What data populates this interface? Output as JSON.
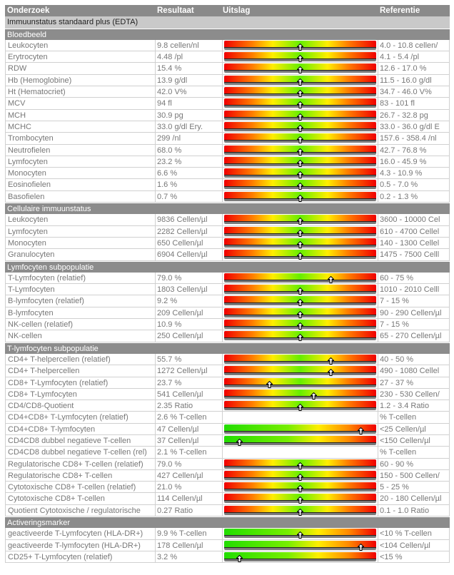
{
  "header": {
    "onderzoek": "Onderzoek",
    "resultaat": "Resultaat",
    "uitslag": "Uitslag",
    "referentie": "Referentie"
  },
  "group_title": "Immuunstatus standaard plus (EDTA)",
  "colors": {
    "header": "#8a8a8a",
    "group": "#c9c9c9",
    "low_high": "#f00000",
    "normal": "#66ee00",
    "intermediate": "#ffee00"
  },
  "sections": [
    {
      "title": "Bloedbeeld",
      "rows": [
        {
          "name": "Leukocyten",
          "result": "9.8 cellen/nl",
          "ref": "4.0 - 10.8 cellen/",
          "bar": "range",
          "pos": 0.5
        },
        {
          "name": "Erytrocyten",
          "result": "4.48 /pl",
          "ref": "4.1 - 5.4 /pl",
          "bar": "range",
          "pos": 0.5
        },
        {
          "name": "RDW",
          "result": "15.4 %",
          "ref": "12.6 - 17.0 %",
          "bar": "range",
          "pos": 0.5
        },
        {
          "name": "Hb (Hemoglobine)",
          "result": "13.9 g/dl",
          "ref": "11.5 - 16.0 g/dl",
          "bar": "range",
          "pos": 0.5
        },
        {
          "name": "Ht (Hematocriet)",
          "result": "42.0 V%",
          "ref": "34.7 - 46.0 V%",
          "bar": "range",
          "pos": 0.5
        },
        {
          "name": "MCV",
          "result": "94 fl",
          "ref": "83 - 101 fl",
          "bar": "range",
          "pos": 0.5
        },
        {
          "name": "MCH",
          "result": "30.9 pg",
          "ref": "26.7 - 32.8 pg",
          "bar": "range",
          "pos": 0.5
        },
        {
          "name": "MCHC",
          "result": "33.0 g/dl Ery.",
          "ref": "33.0 - 36.0 g/dl E",
          "bar": "range",
          "pos": 0.5
        },
        {
          "name": "Trombocyten",
          "result": "299 /nl",
          "ref": "157.6 - 358.4 /nl",
          "bar": "range",
          "pos": 0.5
        },
        {
          "name": "Neutrofielen",
          "result": "68.0 %",
          "ref": "42.7 - 76.8 %",
          "bar": "range",
          "pos": 0.5
        },
        {
          "name": "Lymfocyten",
          "result": "23.2 %",
          "ref": "16.0 - 45.9 %",
          "bar": "range",
          "pos": 0.5
        },
        {
          "name": "Monocyten",
          "result": "6.6 %",
          "ref": "4.3 - 10.9 %",
          "bar": "range",
          "pos": 0.5
        },
        {
          "name": "Eosinofielen",
          "result": "1.6 %",
          "ref": "0.5 - 7.0 %",
          "bar": "range",
          "pos": 0.5
        },
        {
          "name": "Basofielen",
          "result": "0.7 %",
          "ref": "0.2 - 1.3 %",
          "bar": "range",
          "pos": 0.5
        }
      ]
    },
    {
      "title": "Cellulaire immuunstatus",
      "rows": [
        {
          "name": "Leukocyten",
          "result": "9836 Cellen/µl",
          "ref": "3600 - 10000 Cel",
          "bar": "range",
          "pos": 0.5
        },
        {
          "name": "Lymfocyten",
          "result": "2282 Cellen/µl",
          "ref": "610 - 4700 Cellel",
          "bar": "range",
          "pos": 0.5
        },
        {
          "name": "Monocyten",
          "result": "650 Cellen/µl",
          "ref": "140 - 1300 Cellel",
          "bar": "range",
          "pos": 0.5
        },
        {
          "name": "Granulocyten",
          "result": "6904 Cellen/µl",
          "ref": "1475 - 7500 Celll",
          "bar": "range",
          "pos": 0.5
        }
      ]
    },
    {
      "title": "Lymfocyten subpopulatie",
      "rows": [
        {
          "name": "T-Lymfocyten (relatief)",
          "result": "79.0 %",
          "ref": "60 - 75 %",
          "bar": "range",
          "pos": 0.7
        },
        {
          "name": "T-Lymfocyten",
          "result": "1803 Cellen/µl",
          "ref": "1010 - 2010 Celll",
          "bar": "range",
          "pos": 0.5
        },
        {
          "name": "B-lymfocyten (relatief)",
          "result": "9.2 %",
          "ref": "7 - 15 %",
          "bar": "range",
          "pos": 0.5
        },
        {
          "name": "B-lymfocyten",
          "result": "209 Cellen/µl",
          "ref": "90 - 290 Cellen/µl",
          "bar": "range",
          "pos": 0.5
        },
        {
          "name": "NK-cellen (relatief)",
          "result": "10.9 %",
          "ref": "7 - 15 %",
          "bar": "range",
          "pos": 0.5
        },
        {
          "name": "NK-cellen",
          "result": "250 Cellen/µl",
          "ref": "65 - 270 Cellen/µl",
          "bar": "range",
          "pos": 0.5
        }
      ]
    },
    {
      "title": "T-lymfocyten subpopulatie",
      "rows": [
        {
          "name": "CD4+ T-helpercellen (relatief)",
          "result": "55.7 %",
          "ref": "40 - 50 %",
          "bar": "range",
          "pos": 0.7
        },
        {
          "name": "CD4+ T-helpercellen",
          "result": "1272 Cellen/µl",
          "ref": "490 - 1080 Cellel",
          "bar": "range",
          "pos": 0.7
        },
        {
          "name": "CD8+ T-Lymfocyten (relatief)",
          "result": "23.7 %",
          "ref": "27 - 37 %",
          "bar": "range",
          "pos": 0.3
        },
        {
          "name": "CD8+ T-Lymfocyten",
          "result": "541 Cellen/µl",
          "ref": "230 - 530 Cellen/",
          "bar": "range",
          "pos": 0.59
        },
        {
          "name": "CD4/CD8-Quotient",
          "result": "2.35 Ratio",
          "ref": "1.2 - 3.4 Ratio",
          "bar": "range",
          "pos": 0.5
        },
        {
          "name": "CD4+CD8+ T-Lymfocyten (relatief)",
          "result": "2.6 % T-cellen",
          "ref": " % T-cellen",
          "bar": "none"
        },
        {
          "name": "CD4+CD8+ T-lymfocyten",
          "result": "47 Cellen/µl",
          "ref": "<25 Cellen/µl",
          "bar": "upper",
          "pos": 0.9
        },
        {
          "name": "CD4CD8 dubbel negatieve T-cellen",
          "result": "37 Cellen/µl",
          "ref": "<150 Cellen/µl",
          "bar": "upper",
          "pos": 0.1
        },
        {
          "name": "CD4CD8 dubbel negatieve T-cellen (rel)",
          "result": "2.1 % T-cellen",
          "ref": " % T-cellen",
          "bar": "none"
        },
        {
          "name": "Regulatorische CD8+ T-cellen (relatief)",
          "result": "79.0 %",
          "ref": "60 - 90 %",
          "bar": "range",
          "pos": 0.5
        },
        {
          "name": "Regulatorische CD8+ T-cellen",
          "result": "427 Cellen/µl",
          "ref": "150 - 500 Cellen/",
          "bar": "range",
          "pos": 0.5
        },
        {
          "name": "Cytotoxische CD8+ T-cellen (relatief)",
          "result": "21.0 %",
          "ref": "5 - 25 %",
          "bar": "range",
          "pos": 0.5
        },
        {
          "name": "Cytotoxische CD8+ T-cellen",
          "result": "114 Cellen/µl",
          "ref": "20 - 180 Cellen/µl",
          "bar": "range",
          "pos": 0.5
        },
        {
          "name": "Quotient Cytotoxische / regulatorische",
          "result": "0.27 Ratio",
          "ref": "0.1 - 1.0 Ratio",
          "bar": "range",
          "pos": 0.5
        }
      ]
    },
    {
      "title": "Activeringsmarker",
      "rows": [
        {
          "name": "geactiveerde T-Lymfocyten (HLA-DR+)",
          "result": "9.9 % T-cellen",
          "ref": "<10 % T-cellen",
          "bar": "upper",
          "pos": 0.5
        },
        {
          "name": "geactiveerde T-lymfocyten (HLA-DR+)",
          "result": "178 Cellen/µl",
          "ref": "<104 Cellen/µl",
          "bar": "upper",
          "pos": 0.9
        },
        {
          "name": "CD25+ T-Lymfocyten (relatief)",
          "result": "3.2 %",
          "ref": "<15 %",
          "bar": "upper",
          "pos": 0.1
        }
      ]
    }
  ]
}
